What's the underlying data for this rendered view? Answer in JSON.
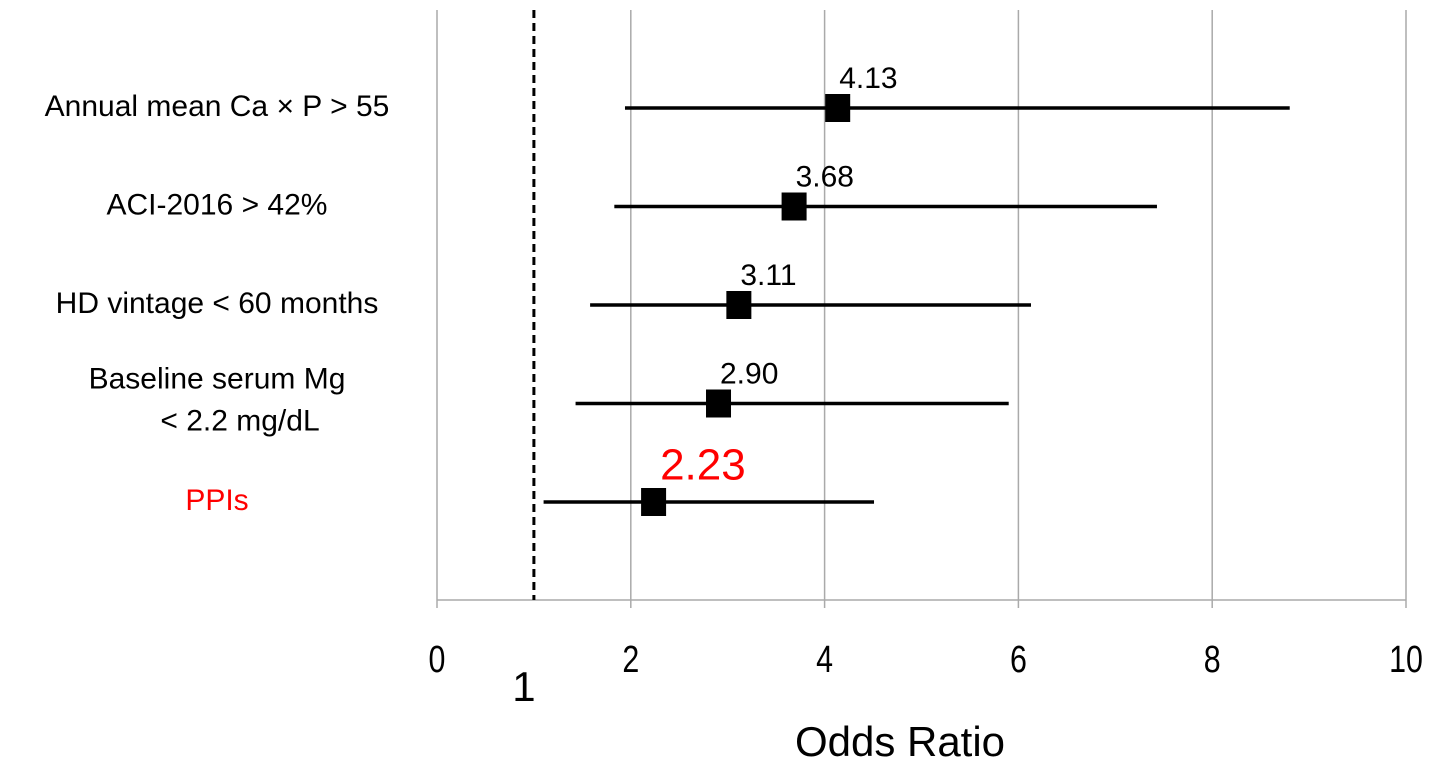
{
  "chart_data": {
    "type": "forest",
    "categories": [
      "Annual mean Ca × P > 55",
      "ACI-2016 > 42%",
      "HD vintage < 60 months",
      "Baseline serum Mg\n< 2.2 mg/dL",
      "PPIs"
    ],
    "label_colors": [
      "#000000",
      "#000000",
      "#000000",
      "#000000",
      "#ff0000"
    ],
    "series": [
      {
        "color": "#000000",
        "values": [
          4.13,
          3.68,
          3.11,
          2.9,
          2.23
        ],
        "value_labels": [
          "4.13",
          "3.68",
          "3.11",
          "2.90",
          "2.23"
        ],
        "lower": [
          1.94,
          1.83,
          1.58,
          1.43,
          1.1
        ],
        "upper": [
          8.8,
          7.43,
          6.13,
          5.9,
          4.51
        ]
      }
    ],
    "reference_line": 1,
    "xlabel": "Odds Ratio",
    "xlim": [
      0,
      10
    ],
    "xticks": [
      0,
      2,
      4,
      6,
      8,
      10
    ],
    "grid": true
  }
}
